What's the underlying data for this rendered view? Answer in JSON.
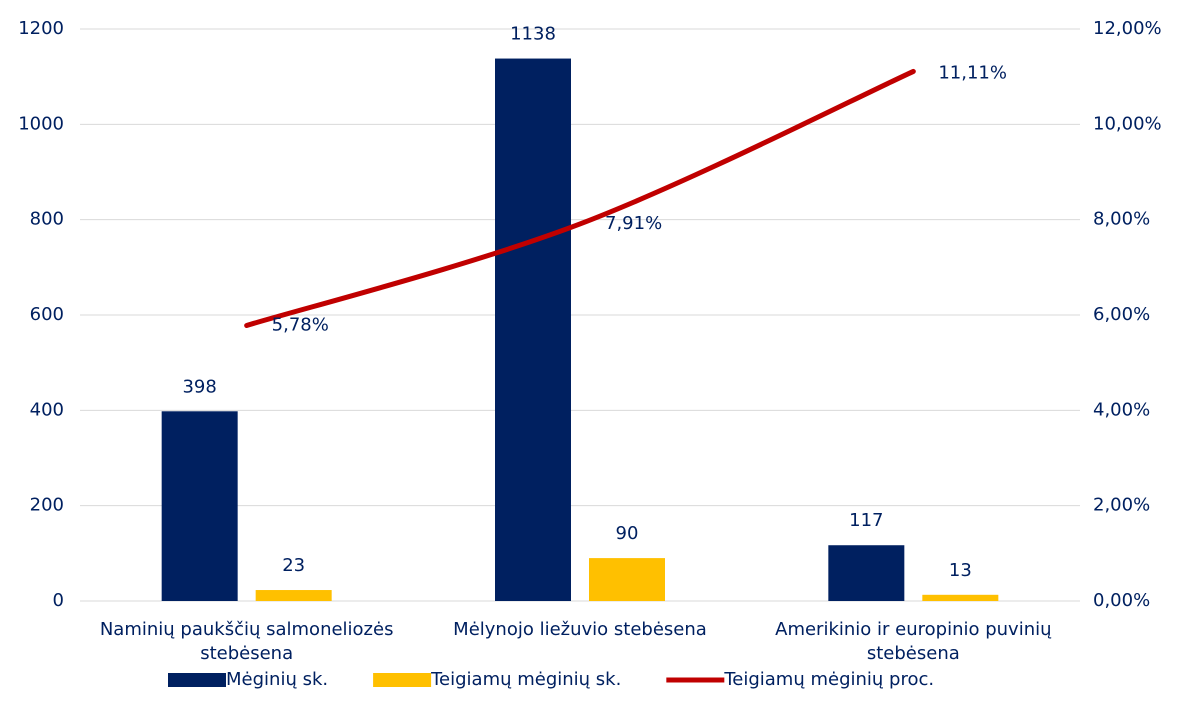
{
  "chart_data": {
    "type": "bar",
    "categories": [
      "Naminių paukščių salmoneliozės stebėsena",
      "Mėlynojo liežuvio stebėsena",
      "Amerikinio ir europinio puvinių stebėsena"
    ],
    "series": [
      {
        "name": "Mėginių sk.",
        "type": "bar",
        "color": "#002060",
        "values": [
          398,
          1138,
          117
        ]
      },
      {
        "name": "Teigiamų mėginių sk.",
        "type": "bar",
        "color": "#FFC000",
        "values": [
          23,
          90,
          13
        ]
      },
      {
        "name": "Teigiamų mėginių proc.",
        "type": "line",
        "axis": "y2",
        "color": "#C00000",
        "values": [
          5.78,
          7.91,
          11.11
        ],
        "value_labels": [
          "5,78%",
          "7,91%",
          "11,11%"
        ]
      }
    ],
    "ylim": [
      0,
      1200
    ],
    "yticks": [
      0,
      200,
      400,
      600,
      800,
      1000,
      1200
    ],
    "y2lim": [
      0,
      12
    ],
    "y2ticks": [
      {
        "value": 0,
        "label": "0,00%"
      },
      {
        "value": 2,
        "label": "2,00%"
      },
      {
        "value": 4,
        "label": "4,00%"
      },
      {
        "value": 6,
        "label": "6,00%"
      },
      {
        "value": 8,
        "label": "8,00%"
      },
      {
        "value": 10,
        "label": "10,00%"
      },
      {
        "value": 12,
        "label": "12,00%"
      }
    ],
    "grid": true,
    "legend": "bottom"
  }
}
